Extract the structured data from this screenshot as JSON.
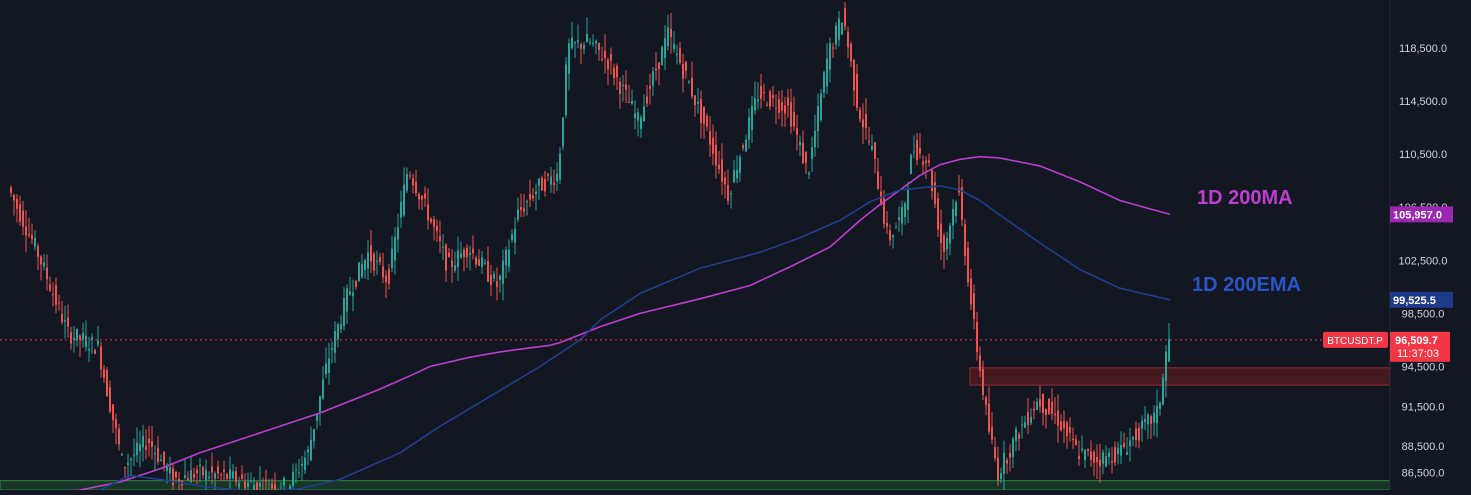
{
  "theme": {
    "background": "#131722",
    "grid": "#1e222d",
    "up_color": "#26a69a",
    "down_color": "#ef5350",
    "ma_color": "#bd3fd0",
    "ema_color": "#1f3f8f",
    "price_line_color": "#f23645",
    "resistance_zone_color": "#6e1b1f",
    "support_zone_color": "#1c4d29",
    "axis_text": "#d1d4dc"
  },
  "price_axis": {
    "ticks": [
      "118,500.0",
      "114,500.0",
      "110,500.0",
      "106,500.0",
      "102,500.0",
      "98,500.0",
      "94,500.0",
      "91,500.0",
      "88,500.0",
      "86,500.0"
    ],
    "tick_values": [
      118500,
      114500,
      110500,
      106500,
      102500,
      98500,
      94500,
      91500,
      88500,
      86500
    ]
  },
  "badges": {
    "ma": {
      "label": "105,957.0",
      "color": "#9c27b0",
      "value": 105957
    },
    "ema": {
      "label": "99,525.5",
      "color": "#1e3a8a",
      "value": 99525.5
    },
    "price": {
      "symbol": "BTCUSDT.P",
      "label": "96,509.7",
      "countdown": "11:37:03",
      "color": "#f23645",
      "value": 96509.7
    }
  },
  "annotations": {
    "ma_label": "1D 200MA",
    "ema_label": "1D 200EMA"
  },
  "chart_data": {
    "type": "line",
    "y_scale": "linear",
    "ylim": [
      85200,
      122100
    ],
    "grid": false,
    "series": [
      {
        "name": "1D 200MA",
        "color": "#bd3fd0",
        "x": [
          0,
          40,
          80,
          120,
          160,
          200,
          260,
          320,
          380,
          410,
          430,
          470,
          500,
          550,
          560,
          600,
          640,
          700,
          750,
          790,
          830,
          860,
          880,
          900,
          920,
          940,
          960,
          980,
          1000,
          1040,
          1080,
          1120,
          1170
        ],
        "y": [
          85000,
          85000,
          85200,
          85800,
          86800,
          88000,
          89500,
          91000,
          92800,
          93800,
          94500,
          95200,
          95600,
          96100,
          96300,
          97500,
          98500,
          99600,
          100600,
          102000,
          103500,
          105500,
          106700,
          107800,
          108900,
          109700,
          110100,
          110300,
          110200,
          109600,
          108400,
          107000,
          105957
        ]
      },
      {
        "name": "1D 200EMA",
        "color": "#1f3f8f",
        "x": [
          100,
          130,
          160,
          200,
          260,
          300,
          340,
          400,
          440,
          480,
          540,
          580,
          600,
          640,
          700,
          760,
          800,
          840,
          870,
          900,
          940,
          960,
          980,
          1000,
          1040,
          1080,
          1120,
          1170
        ],
        "y": [
          85200,
          86300,
          86000,
          85500,
          85000,
          85300,
          86000,
          88000,
          90000,
          91800,
          94500,
          96500,
          98000,
          100000,
          101900,
          103100,
          104200,
          105500,
          106900,
          107800,
          108100,
          107800,
          107000,
          105900,
          103800,
          101800,
          100400,
          99525.5
        ]
      },
      {
        "name": "BTCUSDT.P",
        "color": "#26a69a",
        "x": [
          10,
          40,
          70,
          100,
          125,
          150,
          175,
          200,
          230,
          260,
          290,
          310,
          330,
          350,
          370,
          390,
          410,
          430,
          450,
          470,
          500,
          520,
          540,
          560,
          570,
          590,
          610,
          640,
          670,
          690,
          710,
          730,
          760,
          790,
          810,
          830,
          845,
          860,
          875,
          890,
          905,
          915,
          930,
          945,
          960,
          975,
          990,
          1000,
          1020,
          1040,
          1060,
          1080,
          1100,
          1120,
          1140,
          1160,
          1170
        ],
        "y": [
          108000,
          103000,
          97000,
          96000,
          87000,
          89000,
          86000,
          86500,
          86200,
          85500,
          85500,
          88000,
          95000,
          100000,
          103000,
          101000,
          109500,
          106000,
          102000,
          103500,
          100500,
          106000,
          108000,
          109000,
          118500,
          119000,
          117500,
          113000,
          119500,
          116000,
          112000,
          107500,
          115000,
          114000,
          109000,
          118000,
          121000,
          114000,
          110500,
          104000,
          106000,
          111000,
          110000,
          103000,
          108000,
          98000,
          90000,
          86500,
          89500,
          92000,
          90500,
          88000,
          87500,
          88000,
          89500,
          91000,
          96509.7
        ]
      }
    ],
    "zones": [
      {
        "name": "resistance",
        "y_low": 93100,
        "y_high": 94400,
        "x_start": 970
      },
      {
        "name": "support",
        "y_low": 85200,
        "y_high": 85900,
        "x_start": 0
      }
    ],
    "current_price": 96509.7
  }
}
